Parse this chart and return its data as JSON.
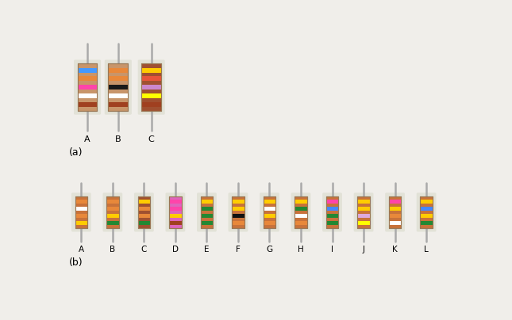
{
  "background_color": "#f0eeea",
  "section_a_label": "(a)",
  "section_b_label": "(b)",
  "resistors_a": [
    {
      "label": "A",
      "body_color": "#c8956a",
      "bands": [
        "#4499ff",
        "#e8883a",
        "#ff44aa",
        "#ffffff",
        "#a04020"
      ]
    },
    {
      "label": "B",
      "body_color": "#c8956a",
      "bands": [
        "#e8883a",
        "#e8883a",
        "#1a1a1a",
        "#ffffff",
        "#a04020"
      ]
    },
    {
      "label": "C",
      "body_color": "#a05030",
      "bands": [
        "#ffcc00",
        "#e8553a",
        "#cc88cc",
        "#ffff00",
        "#a04020"
      ]
    }
  ],
  "resistors_b": [
    {
      "label": "A",
      "body_color": "#c8723a",
      "bands": [
        "#e8883a",
        "#ffffff",
        "#e8883a",
        "#ffcc00"
      ]
    },
    {
      "label": "B",
      "body_color": "#c8723a",
      "bands": [
        "#e8883a",
        "#e8883a",
        "#ffcc00",
        "#228833"
      ]
    },
    {
      "label": "C",
      "body_color": "#a05030",
      "bands": [
        "#ffcc00",
        "#e8883a",
        "#e8883a",
        "#228833"
      ]
    },
    {
      "label": "D",
      "body_color": "#dd66bb",
      "bands": [
        "#ff44aa",
        "#ff44aa",
        "#ffcc00",
        "#a04020"
      ]
    },
    {
      "label": "E",
      "body_color": "#c8723a",
      "bands": [
        "#ffcc00",
        "#228833",
        "#228833",
        "#228833"
      ]
    },
    {
      "label": "F",
      "body_color": "#c8723a",
      "bands": [
        "#ffcc00",
        "#ffcc00",
        "#111111",
        "#e8883a"
      ]
    },
    {
      "label": "G",
      "body_color": "#c8723a",
      "bands": [
        "#ffcc00",
        "#ffffff",
        "#ffcc00",
        "#e8883a"
      ]
    },
    {
      "label": "H",
      "body_color": "#c8723a",
      "bands": [
        "#ffcc00",
        "#228833",
        "#ffffff",
        "#e8883a"
      ]
    },
    {
      "label": "I",
      "body_color": "#c8723a",
      "bands": [
        "#ff44aa",
        "#4488ff",
        "#228833",
        "#228833"
      ]
    },
    {
      "label": "J",
      "body_color": "#c8723a",
      "bands": [
        "#ffcc00",
        "#ffcc00",
        "#ddaadd",
        "#ffff00"
      ]
    },
    {
      "label": "K",
      "body_color": "#c8723a",
      "bands": [
        "#ff44aa",
        "#ffcc00",
        "#e8883a",
        "#ffffff"
      ]
    },
    {
      "label": "L",
      "body_color": "#c8723a",
      "bands": [
        "#ffcc00",
        "#4488ff",
        "#ffcc00",
        "#228833"
      ]
    }
  ]
}
